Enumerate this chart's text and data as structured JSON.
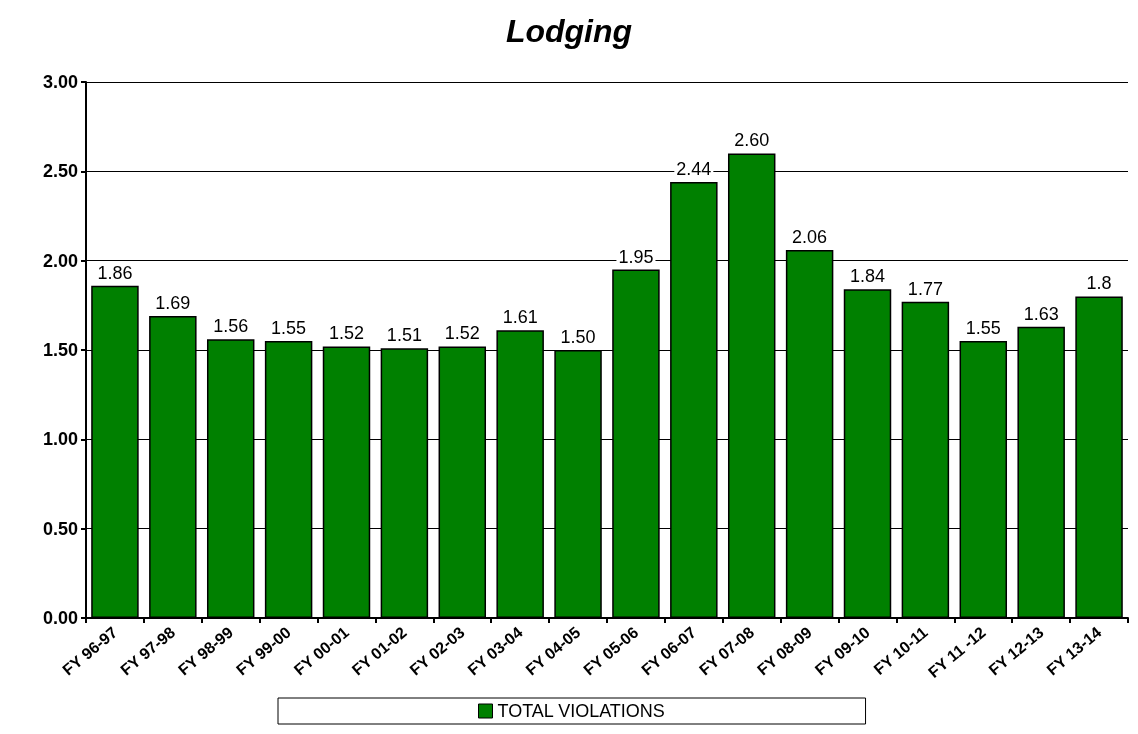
{
  "chart_data": {
    "type": "bar",
    "title": "Lodging",
    "categories": [
      "FY 96-97",
      "FY 97-98",
      "FY 98-99",
      "FY 99-00",
      "FY 00-01",
      "FY 01-02",
      "FY 02-03",
      "FY 03-04",
      "FY 04-05",
      "FY 05-06",
      "FY 06-07",
      "FY 07-08",
      "FY 08-09",
      "FY 09-10",
      "FY 10-11",
      "FY 11 -12",
      "FY 12-13",
      "FY 13-14"
    ],
    "series": [
      {
        "name": "TOTAL VIOLATIONS",
        "color": "#008000",
        "values": [
          1.86,
          1.69,
          1.56,
          1.55,
          1.52,
          1.51,
          1.52,
          1.61,
          1.5,
          1.95,
          2.44,
          2.6,
          2.06,
          1.84,
          1.77,
          1.55,
          1.63,
          1.8
        ],
        "value_labels": [
          "1.86",
          "1.69",
          "1.56",
          "1.55",
          "1.52",
          "1.51",
          "1.52",
          "1.61",
          "1.50",
          "1.95",
          "2.44",
          "2.60",
          "2.06",
          "1.84",
          "1.77",
          "1.55",
          "1.63",
          "1.8"
        ]
      }
    ],
    "ylim": [
      0,
      3
    ],
    "yticks": [
      {
        "value": 0,
        "label": "0.00"
      },
      {
        "value": 0.5,
        "label": "0.50"
      },
      {
        "value": 1,
        "label": "1.00"
      },
      {
        "value": 1.5,
        "label": "1.50"
      },
      {
        "value": 2,
        "label": "2.00"
      },
      {
        "value": 2.5,
        "label": "2.50"
      },
      {
        "value": 3,
        "label": "3.00"
      }
    ],
    "grid": "y",
    "legend": "bottom"
  }
}
